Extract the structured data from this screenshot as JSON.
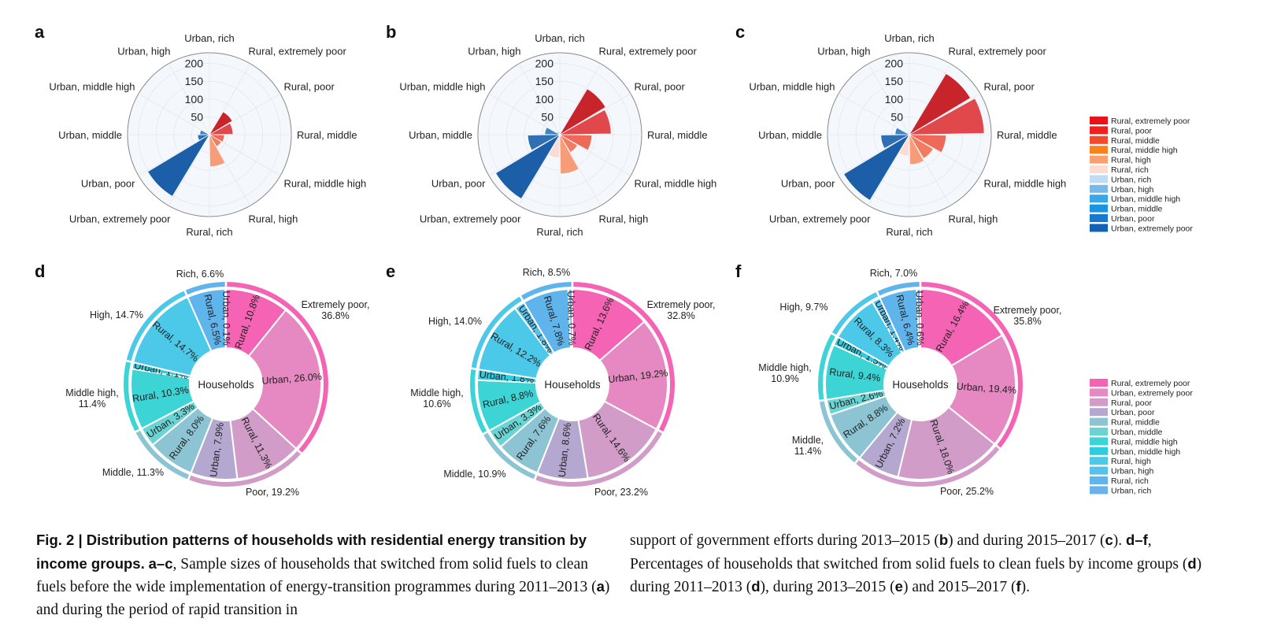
{
  "panel_letters": [
    "a",
    "b",
    "c",
    "d",
    "e",
    "f"
  ],
  "polar_categories": [
    "Urban, rich",
    "Rural, extremely poor",
    "Rural, poor",
    "Rural, middle",
    "Rural, middle high",
    "Rural, high",
    "Rural, rich",
    "Urban, extremely poor",
    "Urban, poor",
    "Urban, middle",
    "Urban, middle high",
    "Urban, high"
  ],
  "polar_colors": [
    "#c6e0f6",
    "#c8242c",
    "#e0484c",
    "#ee6a58",
    "#f27c60",
    "#f79c78",
    "#fbdcd4",
    "#1d5ea8",
    "#2f6fb4",
    "#3f84c6",
    "#6aa4d8",
    "#9cc4e8"
  ],
  "legend_top": {
    "labels": [
      "Rural, extremely poor",
      "Rural, poor",
      "Rural, middle",
      "Rural, middle high",
      "Rural, high",
      "Rural, rich",
      "Urban, rich",
      "Urban, high",
      "Urban, middle high",
      "Urban, middle",
      "Urban, poor",
      "Urban, extremely poor"
    ],
    "colors": [
      "#e8121c",
      "#f0201e",
      "#f24a2a",
      "#f7821e",
      "#f9a070",
      "#fbdcd0",
      "#c0dcf4",
      "#7ab8ec",
      "#3aa6ea",
      "#1a94e2",
      "#1878cc",
      "#1062b8"
    ]
  },
  "legend_bottom": {
    "labels": [
      "Rural, extremely poor",
      "Urban, extremely poor",
      "Rural, poor",
      "Urban, poor",
      "Rural, middle",
      "Urban, middle",
      "Rural, middle high",
      "Urban, middle high",
      "Rural, high",
      "Urban, high",
      "Rural, rich",
      "Urban, rich"
    ],
    "colors": [
      "#f463b4",
      "#e689c2",
      "#d29cc8",
      "#b4a8d0",
      "#8cc4d4",
      "#6ad4d4",
      "#3cd4d4",
      "#2ecce0",
      "#4cc8e8",
      "#56c2ec",
      "#60b4ec",
      "#6cb0ec"
    ]
  },
  "donut_center": "Households",
  "chart_data": [
    {
      "panel": "a",
      "type": "polar-bar",
      "rticks": [
        "50",
        "100",
        "150",
        "200"
      ],
      "rlim": [
        0,
        230
      ],
      "categories": [
        "Urban, rich",
        "Rural, extremely poor",
        "Rural, poor",
        "Rural, middle",
        "Rural, middle high",
        "Rural, high",
        "Rural, rich",
        "Urban, extremely poor",
        "Urban, poor",
        "Urban, middle",
        "Urban, middle high",
        "Urban, high"
      ],
      "values": [
        2,
        75,
        66,
        42,
        39,
        90,
        2,
        202,
        33,
        27,
        4,
        2
      ]
    },
    {
      "panel": "b",
      "type": "polar-bar",
      "rticks": [
        "50",
        "100",
        "150",
        "200"
      ],
      "rlim": [
        0,
        230
      ],
      "categories": [
        "Urban, rich",
        "Rural, extremely poor",
        "Rural, poor",
        "Rural, middle",
        "Rural, middle high",
        "Rural, high",
        "Rural, rich",
        "Urban, extremely poor",
        "Urban, poor",
        "Urban, middle",
        "Urban, middle high",
        "Urban, high"
      ],
      "values": [
        10,
        150,
        144,
        90,
        58,
        110,
        65,
        210,
        90,
        42,
        10,
        8
      ]
    },
    {
      "panel": "c",
      "type": "polar-bar",
      "rticks": [
        "50",
        "100",
        "150",
        "200"
      ],
      "rlim": [
        0,
        230
      ],
      "categories": [
        "Urban, rich",
        "Rural, extremely poor",
        "Rural, poor",
        "Rural, middle",
        "Rural, middle high",
        "Rural, high",
        "Rural, rich",
        "Urban, extremely poor",
        "Urban, poor",
        "Urban, middle",
        "Urban, middle high",
        "Urban, high"
      ],
      "values": [
        5,
        200,
        210,
        103,
        78,
        84,
        60,
        215,
        80,
        40,
        8,
        5
      ]
    },
    {
      "panel": "d",
      "type": "donut",
      "center": "Households",
      "slices": [
        {
          "label": "Rural, 10.8%",
          "value": 10.8,
          "color": "#f463b4"
        },
        {
          "label": "Urban, 26.0%",
          "value": 26.0,
          "color": "#e689c2"
        },
        {
          "label": "Rural, 11.3%",
          "value": 11.3,
          "color": "#d29cc8"
        },
        {
          "label": "Urban, 7.9%",
          "value": 7.9,
          "color": "#b4a8d0"
        },
        {
          "label": "Rural, 8.0%",
          "value": 8.0,
          "color": "#8cc4d4"
        },
        {
          "label": "Urban, 3.3%",
          "value": 3.3,
          "color": "#6ad4d4"
        },
        {
          "label": "Rural, 10.3%",
          "value": 10.3,
          "color": "#3cd4d4"
        },
        {
          "label": "Urban, 1.1%",
          "value": 1.1,
          "color": "#2ecce0"
        },
        {
          "label": "Rural, 14.7%",
          "value": 14.7,
          "color": "#4cc8e8"
        },
        {
          "label": "Rural, 6.5%",
          "value": 6.5,
          "color": "#60b4ec"
        },
        {
          "label": "Urban, 0.1%",
          "value": 0.1,
          "color": "#6cb0ec"
        }
      ],
      "groups": [
        {
          "label": "Extremely poor,\n36.8%",
          "value": 36.8,
          "color": "#f463b4"
        },
        {
          "label": "Poor, 19.2%",
          "value": 19.2,
          "color": "#d29cc8"
        },
        {
          "label": "Middle, 11.3%",
          "value": 11.3,
          "color": "#8cc4d4"
        },
        {
          "label": "Middle high,\n11.4%",
          "value": 11.4,
          "color": "#3cd4d4"
        },
        {
          "label": "High, 14.7%",
          "value": 14.7,
          "color": "#4cc8e8"
        },
        {
          "label": "Rich, 6.6%",
          "value": 6.6,
          "color": "#60b4ec"
        }
      ]
    },
    {
      "panel": "e",
      "type": "donut",
      "center": "Households",
      "slices": [
        {
          "label": "Rural, 13.6%",
          "value": 13.6,
          "color": "#f463b4"
        },
        {
          "label": "Urban, 19.2%",
          "value": 19.2,
          "color": "#e689c2"
        },
        {
          "label": "Rural, 14.6%",
          "value": 14.6,
          "color": "#d29cc8"
        },
        {
          "label": "Urban, 8.6%",
          "value": 8.6,
          "color": "#b4a8d0"
        },
        {
          "label": "Rural, 7.6%",
          "value": 7.6,
          "color": "#8cc4d4"
        },
        {
          "label": "Urban, 3.3%",
          "value": 3.3,
          "color": "#6ad4d4"
        },
        {
          "label": "Rural, 8.8%",
          "value": 8.8,
          "color": "#3cd4d4"
        },
        {
          "label": "Urban, 1.8%",
          "value": 1.8,
          "color": "#2ecce0"
        },
        {
          "label": "Rural, 12.2%",
          "value": 12.2,
          "color": "#4cc8e8"
        },
        {
          "label": "Urban, 1.8%",
          "value": 1.8,
          "color": "#56c2ec"
        },
        {
          "label": "Rural, 7.8%",
          "value": 7.8,
          "color": "#60b4ec"
        },
        {
          "label": "Urban, 0.7%",
          "value": 0.7,
          "color": "#6cb0ec"
        }
      ],
      "groups": [
        {
          "label": "Extremely poor,\n32.8%",
          "value": 32.8,
          "color": "#f463b4"
        },
        {
          "label": "Poor, 23.2%",
          "value": 23.2,
          "color": "#d29cc8"
        },
        {
          "label": "Middle, 10.9%",
          "value": 10.9,
          "color": "#8cc4d4"
        },
        {
          "label": "Middle high,\n10.6%",
          "value": 10.6,
          "color": "#3cd4d4"
        },
        {
          "label": "High, 14.0%",
          "value": 14.0,
          "color": "#4cc8e8"
        },
        {
          "label": "Rich, 8.5%",
          "value": 8.5,
          "color": "#60b4ec"
        }
      ]
    },
    {
      "panel": "f",
      "type": "donut",
      "center": "Households",
      "slices": [
        {
          "label": "Rural, 16.4%",
          "value": 16.4,
          "color": "#f463b4"
        },
        {
          "label": "Urban, 19.4%",
          "value": 19.4,
          "color": "#e689c2"
        },
        {
          "label": "Rural, 18.0%",
          "value": 18.0,
          "color": "#d29cc8"
        },
        {
          "label": "Urban, 7.2%",
          "value": 7.2,
          "color": "#b4a8d0"
        },
        {
          "label": "Rural, 8.8%",
          "value": 8.8,
          "color": "#8cc4d4"
        },
        {
          "label": "Urban, 2.6%",
          "value": 2.6,
          "color": "#6ad4d4"
        },
        {
          "label": "Rural, 9.4%",
          "value": 9.4,
          "color": "#3cd4d4"
        },
        {
          "label": "Urban, 1.5%",
          "value": 1.5,
          "color": "#2ecce0"
        },
        {
          "label": "Rural, 8.3%",
          "value": 8.3,
          "color": "#4cc8e8"
        },
        {
          "label": "Urban, 1.4%",
          "value": 1.4,
          "color": "#56c2ec"
        },
        {
          "label": "Rural, 6.4%",
          "value": 6.4,
          "color": "#60b4ec"
        },
        {
          "label": "Urban, 0.6%",
          "value": 0.6,
          "color": "#6cb0ec"
        }
      ],
      "groups": [
        {
          "label": "Extremely poor,\n35.8%",
          "value": 35.8,
          "color": "#f463b4"
        },
        {
          "label": "Poor, 25.2%",
          "value": 25.2,
          "color": "#d29cc8"
        },
        {
          "label": "Middle,\n11.4%",
          "value": 11.4,
          "color": "#8cc4d4"
        },
        {
          "label": "Middle high,\n10.9%",
          "value": 10.9,
          "color": "#3cd4d4"
        },
        {
          "label": "High, 9.7%",
          "value": 9.7,
          "color": "#4cc8e8"
        },
        {
          "label": "Rich, 7.0%",
          "value": 7.0,
          "color": "#60b4ec"
        }
      ]
    }
  ],
  "caption": {
    "fig_label": "Fig. 2 | ",
    "title": "Distribution patterns of households with residential energy transition by income groups.",
    "range_ac": "a–c",
    "text1": ", Sample sizes of households that switched from solid fuels to clean fuels before the wide implementation of energy-transition programmes during 2011–2013 (",
    "letter_a": "a",
    "text2": ") and during the period of rapid transition in support of government efforts during 2013–2015 (",
    "letter_b": "b",
    "text3": ") and during 2015–2017 (",
    "letter_c": "c",
    "text4": ").",
    "range_df": "d–f",
    "text5": ", Percentages of households that switched from solid fuels to clean fuels by income groups (",
    "letter_d1": "d",
    "text6": ") during 2011–2013 (",
    "letter_d2": "d",
    "text7": "), during 2013–2015 (",
    "letter_e": "e",
    "text8": ") and 2015–2017 (",
    "letter_f": "f",
    "text9": ")."
  }
}
